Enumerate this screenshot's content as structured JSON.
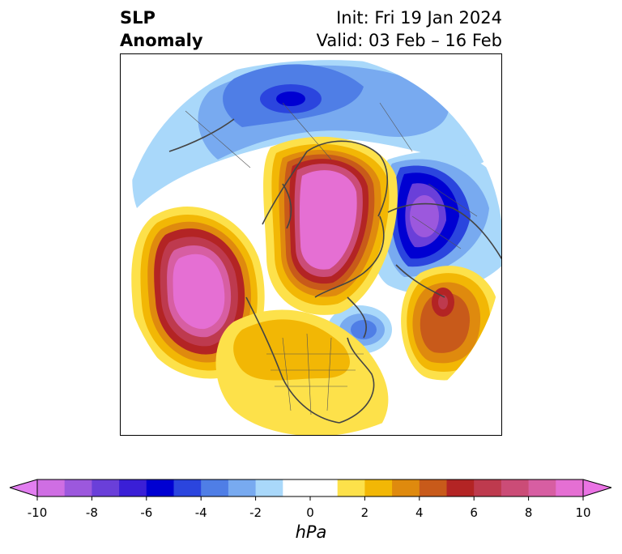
{
  "title": {
    "line1": "SLP",
    "line2": "Anomaly",
    "init": "Init: Fri 19 Jan 2024",
    "valid": "Valid: 03 Feb – 16 Feb"
  },
  "colorbar": {
    "unit": "hPa",
    "ticks": [
      "-10",
      "-8",
      "-6",
      "-4",
      "-2",
      "0",
      "2",
      "4",
      "6",
      "8",
      "10"
    ],
    "tick_values": [
      -10,
      -8,
      -6,
      -4,
      -2,
      0,
      2,
      4,
      6,
      8,
      10
    ],
    "bins": [
      {
        "from": -10,
        "to": -9,
        "color": "#cf6ee3"
      },
      {
        "from": -9,
        "to": -8,
        "color": "#9c58dd"
      },
      {
        "from": -8,
        "to": -7,
        "color": "#6a3fd9"
      },
      {
        "from": -7,
        "to": -6,
        "color": "#3a1fd6"
      },
      {
        "from": -6,
        "to": -5,
        "color": "#0000d2"
      },
      {
        "from": -5,
        "to": -4,
        "color": "#2b45de"
      },
      {
        "from": -4,
        "to": -3,
        "color": "#4f7ee6"
      },
      {
        "from": -3,
        "to": -2,
        "color": "#78aaf0"
      },
      {
        "from": -2,
        "to": -1,
        "color": "#a9d8fa"
      },
      {
        "from": -1,
        "to": 1,
        "color": "#ffffff"
      },
      {
        "from": 1,
        "to": 2,
        "color": "#fde14a"
      },
      {
        "from": 2,
        "to": 3,
        "color": "#f2b705"
      },
      {
        "from": 3,
        "to": 4,
        "color": "#df8a0e"
      },
      {
        "from": 4,
        "to": 5,
        "color": "#c85a1a"
      },
      {
        "from": 5,
        "to": 6,
        "color": "#b32424"
      },
      {
        "from": 6,
        "to": 7,
        "color": "#be3a4e"
      },
      {
        "from": 7,
        "to": 8,
        "color": "#cb4c77"
      },
      {
        "from": 8,
        "to": 9,
        "color": "#d75ea2"
      },
      {
        "from": 9,
        "to": 10,
        "color": "#e56fd3"
      }
    ],
    "under_color": "#e27ef0",
    "over_color": "#ea73e4"
  },
  "map": {
    "projection": "north-polar-stereographic",
    "anomaly_centers": [
      {
        "region": "north-pacific",
        "sign": "positive",
        "peak_hpa": 10
      },
      {
        "region": "arctic",
        "sign": "positive",
        "peak_hpa": 10
      },
      {
        "region": "scandinavia",
        "sign": "negative",
        "peak_hpa": -9
      },
      {
        "region": "central-asia",
        "sign": "negative",
        "peak_hpa": -5
      },
      {
        "region": "north-atlantic",
        "sign": "positive",
        "peak_hpa": 7
      },
      {
        "region": "eastern-canada",
        "sign": "negative",
        "peak_hpa": -4
      },
      {
        "region": "eastern-united-states",
        "sign": "positive",
        "peak_hpa": 2
      }
    ]
  }
}
